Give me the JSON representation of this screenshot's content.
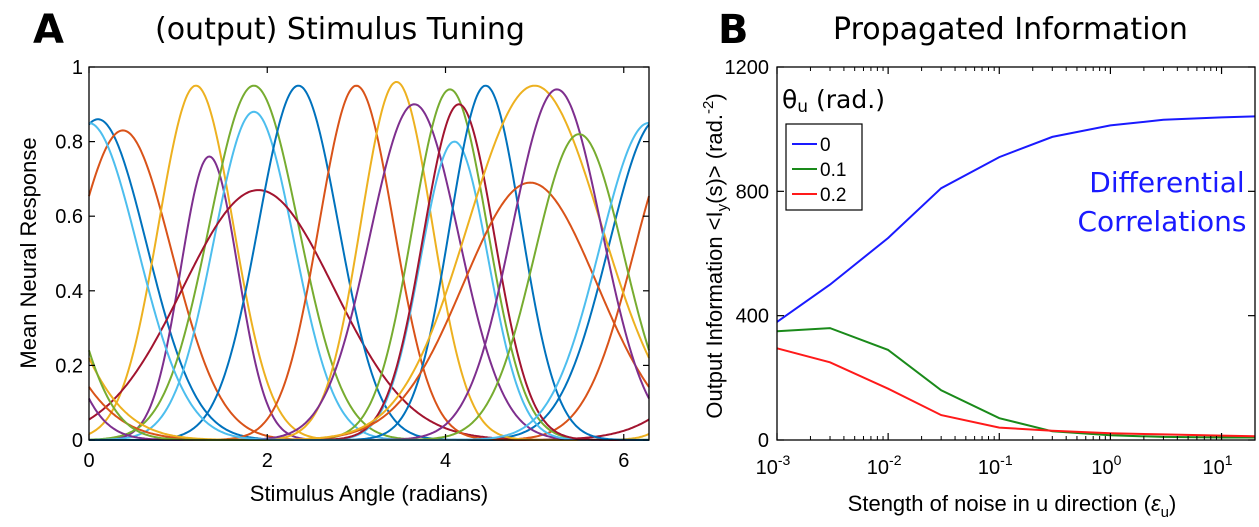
{
  "panels": {
    "a": {
      "letter": "A",
      "title": "(output) Stimulus Tuning",
      "xlabel": "Stimulus Angle (radians)",
      "ylabel": "Mean Neural Response"
    },
    "b": {
      "letter": "B",
      "title": "Propagated Information",
      "xlabel_main": "Stength of noise in u direction (",
      "xlabel_symbol": "ε",
      "xlabel_sub": "u",
      "xlabel_end": ")",
      "ylabel_main": "Output Information <I",
      "ylabel_sub": "y",
      "ylabel_mid": "(s)> (rad.",
      "ylabel_sup": "-2",
      "ylabel_end": ")",
      "legend_title_symbol": "θ",
      "legend_title_sub": "u",
      "legend_title_rest": " (rad.)",
      "annotation_line1": "Differential",
      "annotation_line2": "Correlations"
    }
  },
  "colors": {
    "tuning": [
      "#0072bd",
      "#d95319",
      "#edb120",
      "#7e2f8e",
      "#77ac30",
      "#4dbeee",
      "#a2142f"
    ],
    "series_blue": "#1a1aff",
    "series_green": "#1a8a1a",
    "series_red": "#ff1a1a"
  },
  "chart_data": [
    {
      "type": "line",
      "title": "(output) Stimulus Tuning",
      "xlabel": "Stimulus Angle (radians)",
      "ylabel": "Mean Neural Response",
      "xlim": [
        0,
        6.2832
      ],
      "ylim": [
        0,
        1
      ],
      "xticks": [
        "0",
        "2",
        "4",
        "6"
      ],
      "yticks": [
        "0",
        "0.2",
        "0.4",
        "0.6",
        "0.8",
        "1"
      ],
      "grid": false,
      "tuning_curves": [
        {
          "center": 0.1,
          "peak": 0.86,
          "width": 0.55
        },
        {
          "center": 0.38,
          "peak": 0.83,
          "width": 0.55
        },
        {
          "center": 1.2,
          "peak": 0.95,
          "width": 0.42
        },
        {
          "center": 1.35,
          "peak": 0.76,
          "width": 0.32
        },
        {
          "center": 1.85,
          "peak": 0.95,
          "width": 0.5
        },
        {
          "center": 1.85,
          "peak": 0.88,
          "width": 0.45
        },
        {
          "center": 1.9,
          "peak": 0.67,
          "width": 0.85
        },
        {
          "center": 2.35,
          "peak": 0.95,
          "width": 0.45
        },
        {
          "center": 3.0,
          "peak": 0.95,
          "width": 0.42
        },
        {
          "center": 3.45,
          "peak": 0.96,
          "width": 0.4
        },
        {
          "center": 3.65,
          "peak": 0.9,
          "width": 0.5
        },
        {
          "center": 4.05,
          "peak": 0.94,
          "width": 0.42
        },
        {
          "center": 4.1,
          "peak": 0.8,
          "width": 0.38
        },
        {
          "center": 4.15,
          "peak": 0.9,
          "width": 0.4
        },
        {
          "center": 4.45,
          "peak": 0.95,
          "width": 0.4
        },
        {
          "center": 4.95,
          "peak": 0.69,
          "width": 0.75
        },
        {
          "center": 5.0,
          "peak": 0.95,
          "width": 0.75
        },
        {
          "center": 5.25,
          "peak": 0.94,
          "width": 0.5
        },
        {
          "center": 5.5,
          "peak": 0.82,
          "width": 0.5
        },
        {
          "center": 6.28,
          "peak": 0.85,
          "width": 0.55
        }
      ]
    },
    {
      "type": "line",
      "title": "Propagated Information",
      "xlabel": "Stength of noise in u direction (ε_u)",
      "ylabel": "Output Information <I_y(s)> (rad.^-2)",
      "xscale": "log",
      "xlim": [
        0.001,
        20
      ],
      "ylim": [
        0,
        1200
      ],
      "xticks": [
        {
          "base": "10",
          "exp": "-3",
          "value": 0.001
        },
        {
          "base": "10",
          "exp": "-2",
          "value": 0.01
        },
        {
          "base": "10",
          "exp": "-1",
          "value": 0.1
        },
        {
          "base": "10",
          "exp": "0",
          "value": 1
        },
        {
          "base": "10",
          "exp": "1",
          "value": 10
        }
      ],
      "yticks": [
        "0",
        "400",
        "800",
        "1200"
      ],
      "legend_title": "θu (rad.)",
      "legend_placement": "top-left",
      "series": [
        {
          "name": "0",
          "color": "#1a1aff",
          "x": [
            0.001,
            0.003,
            0.01,
            0.03,
            0.1,
            0.3,
            1,
            3,
            10,
            20
          ],
          "y": [
            380,
            500,
            650,
            810,
            910,
            975,
            1012,
            1030,
            1038,
            1041
          ]
        },
        {
          "name": "0.1",
          "color": "#1a8a1a",
          "x": [
            0.001,
            0.003,
            0.01,
            0.03,
            0.1,
            0.3,
            1,
            3,
            10,
            20
          ],
          "y": [
            350,
            360,
            290,
            160,
            70,
            28,
            15,
            10,
            8,
            8
          ]
        },
        {
          "name": "0.2",
          "color": "#ff1a1a",
          "x": [
            0.001,
            0.003,
            0.01,
            0.03,
            0.1,
            0.3,
            1,
            3,
            10,
            20
          ],
          "y": [
            295,
            250,
            165,
            80,
            40,
            30,
            22,
            18,
            14,
            12
          ]
        }
      ]
    }
  ]
}
